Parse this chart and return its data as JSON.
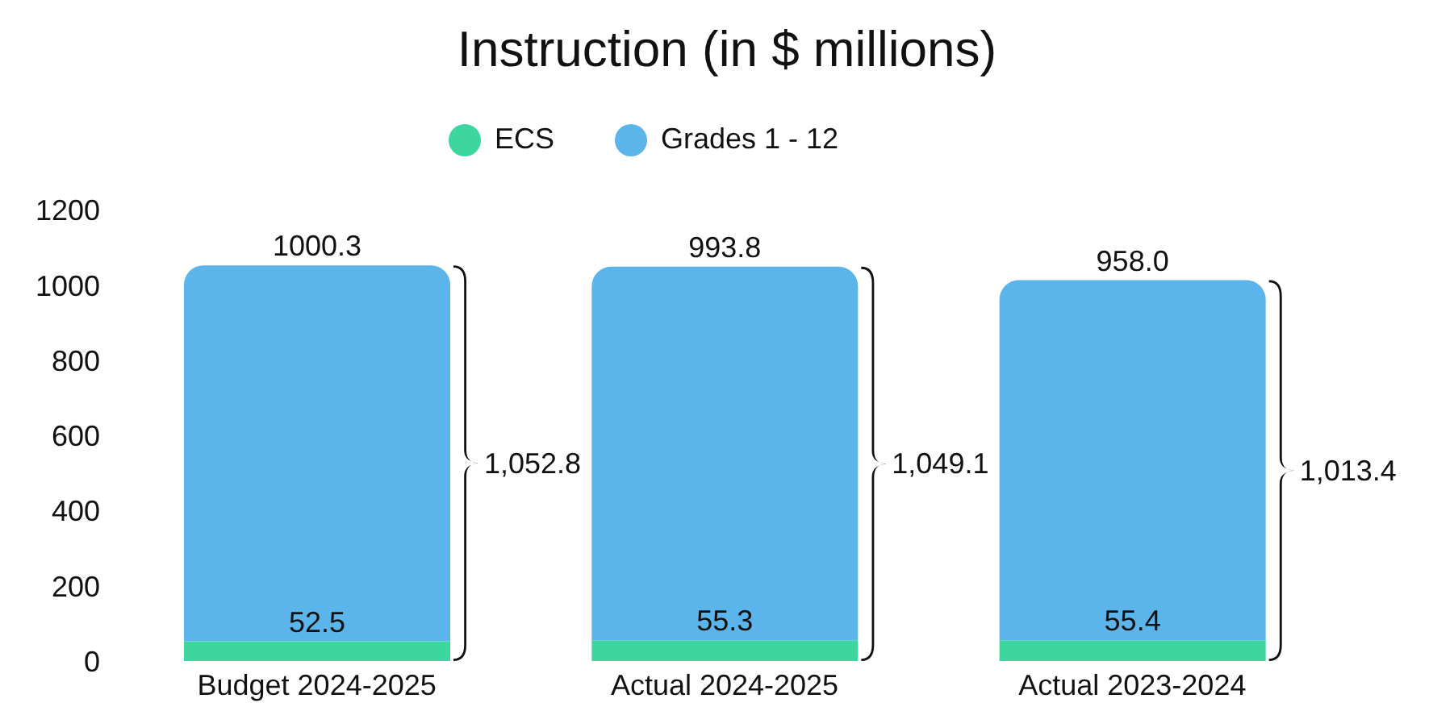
{
  "chart_data": {
    "type": "bar",
    "title": "Instruction (in $ millions)",
    "categories": [
      "Budget 2024-2025",
      "Actual 2024-2025",
      "Actual 2023-2024"
    ],
    "series": [
      {
        "name": "ECS",
        "color": "#3dd69f",
        "values": [
          52.5,
          55.3,
          55.4
        ],
        "value_labels": [
          "52.5",
          "55.3",
          "55.4"
        ]
      },
      {
        "name": "Grades 1 - 12",
        "color": "#5cb5ea",
        "values": [
          1000.3,
          993.8,
          958.0
        ],
        "value_labels": [
          "1000.3",
          "993.8",
          "958.0"
        ]
      }
    ],
    "stacked": true,
    "totals": [
      "1,052.8",
      "1,049.1",
      "1,013.4"
    ],
    "ylim": [
      0,
      1200
    ],
    "yticks": [
      0,
      200,
      400,
      600,
      800,
      1000,
      1200
    ],
    "grid": false,
    "legend": "top"
  }
}
